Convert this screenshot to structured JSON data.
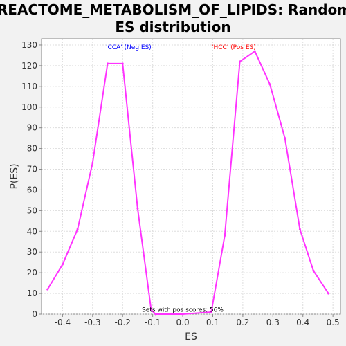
{
  "chart_data": {
    "type": "line",
    "title": [
      "REACTOME_METABOLISM_OF_LIPIDS: Random",
      "ES distribution"
    ],
    "xlabel": "ES",
    "ylabel": "P(ES)",
    "xlim": [
      -0.47,
      0.525
    ],
    "ylim": [
      0,
      133
    ],
    "x_ticks": [
      -0.4,
      -0.3,
      -0.2,
      -0.1,
      0.0,
      0.1,
      0.2,
      0.3,
      0.4,
      0.5
    ],
    "x_tick_labels": [
      "-0.4",
      "-0.3",
      "-0.2",
      "-0.1",
      "0.0",
      "0.1",
      "0.2",
      "0.3",
      "0.4",
      "0.5"
    ],
    "y_ticks": [
      0,
      10,
      20,
      30,
      40,
      50,
      60,
      70,
      80,
      90,
      100,
      110,
      120,
      130
    ],
    "y_tick_labels": [
      "0",
      "10",
      "20",
      "30",
      "40",
      "50",
      "60",
      "70",
      "80",
      "90",
      "100",
      "110",
      "120",
      "130"
    ],
    "grid": true,
    "series": [
      {
        "color": "#ff33ff",
        "x": [
          -0.45,
          -0.4,
          -0.35,
          -0.3,
          -0.25,
          -0.2,
          -0.15,
          -0.105,
          -0.09,
          0.0,
          0.095,
          0.14,
          0.19,
          0.24,
          0.29,
          0.34,
          0.39,
          0.435,
          0.485
        ],
        "y": [
          12,
          24,
          41,
          73,
          121,
          121,
          51,
          2,
          0,
          0,
          1,
          38,
          122,
          127,
          111,
          85,
          41,
          21,
          10
        ]
      }
    ],
    "annotations": [
      {
        "text": "'CCA' (Neg ES)",
        "x": -0.18,
        "y": 128,
        "color": "#0000ff"
      },
      {
        "text": "'HCC' (Pos ES)",
        "x": 0.17,
        "y": 128,
        "color": "#ff0000"
      },
      {
        "text": "Sets with pos scores: 56%",
        "x": 0.0,
        "y": 1.2,
        "color": "#000000"
      }
    ]
  }
}
